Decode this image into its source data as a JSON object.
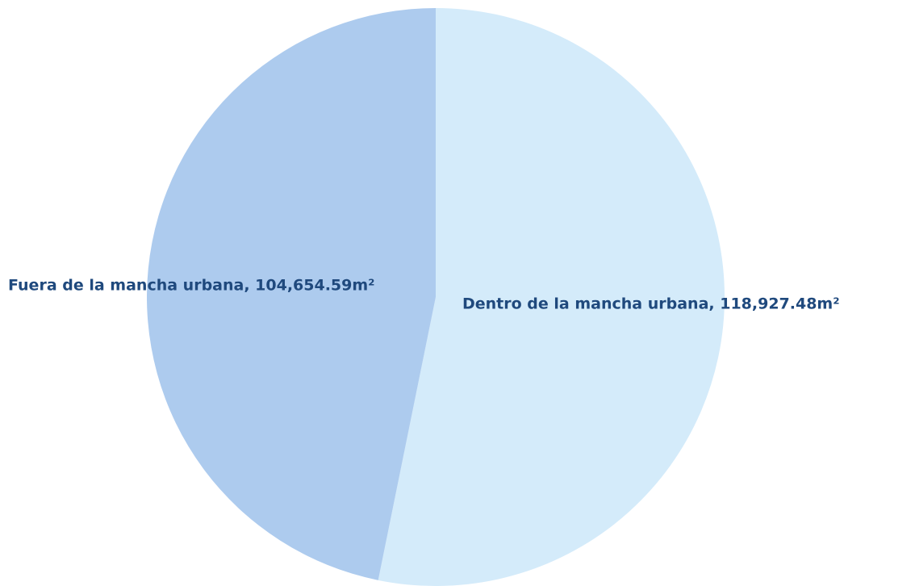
{
  "chart_data": {
    "type": "pie",
    "values": [
      118927.48,
      104654.59
    ],
    "value_labels": [
      "Dentro de la mancha urbana, 118,927.48m²",
      "Fuera de la mancha urbana, 104,654.59m²"
    ],
    "colors": [
      "#d4ebfa",
      "#adcbee"
    ]
  }
}
